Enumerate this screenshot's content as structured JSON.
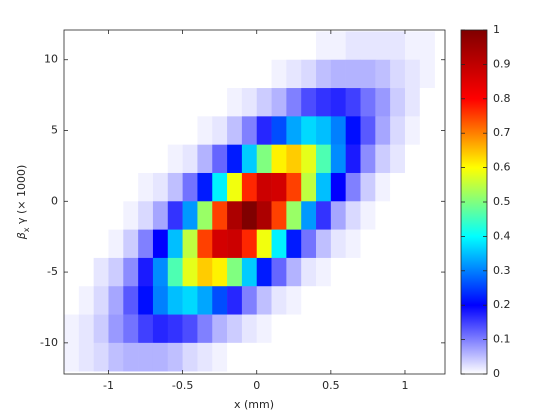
{
  "chart_data": {
    "type": "heatmap",
    "xlabel": "x (mm)",
    "ylabel": {
      "symbol": "β",
      "sub": "x",
      "rest": " γ (× 1000)"
    },
    "x": [
      -1.25,
      -1.15,
      -1.05,
      -0.95,
      -0.85,
      -0.75,
      -0.65,
      -0.55,
      -0.45,
      -0.35,
      -0.25,
      -0.15,
      -0.05,
      0.05,
      0.15,
      0.25,
      0.35,
      0.45,
      0.55,
      0.65,
      0.75,
      0.85,
      0.95,
      1.05,
      1.15
    ],
    "y": [
      11,
      9,
      7,
      5,
      3,
      1,
      -1,
      -3,
      -5,
      -7,
      -9,
      -11
    ],
    "z": [
      [
        0,
        0,
        0,
        0,
        0,
        0,
        0,
        0,
        0,
        0,
        0,
        0,
        0,
        0,
        0,
        0,
        0,
        0.01,
        0.01,
        0.02,
        0.02,
        0.02,
        0.02,
        0.01,
        0.01
      ],
      [
        0,
        0,
        0,
        0,
        0,
        0,
        0,
        0,
        0,
        0,
        0,
        0,
        0,
        0,
        0.01,
        0.02,
        0.03,
        0.05,
        0.06,
        0.06,
        0.06,
        0.05,
        0.03,
        0.02,
        0.01
      ],
      [
        0,
        0,
        0,
        0,
        0,
        0,
        0,
        0,
        0,
        0,
        0,
        0.01,
        0.02,
        0.04,
        0.06,
        0.1,
        0.14,
        0.16,
        0.17,
        0.15,
        0.11,
        0.08,
        0.04,
        0.02,
        0
      ],
      [
        0,
        0,
        0,
        0,
        0,
        0,
        0,
        0,
        0,
        0.01,
        0.02,
        0.05,
        0.1,
        0.17,
        0.26,
        0.33,
        0.37,
        0.35,
        0.3,
        0.21,
        0.13,
        0.07,
        0.03,
        0.01,
        0
      ],
      [
        0,
        0,
        0,
        0,
        0,
        0,
        0,
        0.01,
        0.02,
        0.06,
        0.12,
        0.22,
        0.36,
        0.5,
        0.61,
        0.64,
        0.58,
        0.46,
        0.31,
        0.18,
        0.09,
        0.04,
        0.02,
        0,
        0
      ],
      [
        0,
        0,
        0,
        0,
        0,
        0.01,
        0.02,
        0.05,
        0.11,
        0.22,
        0.39,
        0.59,
        0.77,
        0.88,
        0.87,
        0.75,
        0.55,
        0.35,
        0.2,
        0.1,
        0.04,
        0.01,
        0,
        0,
        0
      ],
      [
        0,
        0,
        0,
        0,
        0.01,
        0.03,
        0.07,
        0.16,
        0.32,
        0.52,
        0.75,
        0.93,
        1,
        0.93,
        0.75,
        0.52,
        0.32,
        0.16,
        0.07,
        0.03,
        0.01,
        0,
        0,
        0,
        0
      ],
      [
        0,
        0,
        0,
        0.01,
        0.04,
        0.1,
        0.2,
        0.35,
        0.55,
        0.75,
        0.87,
        0.88,
        0.77,
        0.59,
        0.39,
        0.22,
        0.11,
        0.05,
        0.02,
        0.01,
        0,
        0,
        0,
        0,
        0
      ],
      [
        0,
        0,
        0.02,
        0.04,
        0.09,
        0.18,
        0.31,
        0.46,
        0.58,
        0.64,
        0.61,
        0.5,
        0.36,
        0.22,
        0.12,
        0.06,
        0.02,
        0.01,
        0,
        0,
        0,
        0,
        0,
        0,
        0
      ],
      [
        0,
        0.01,
        0.03,
        0.07,
        0.13,
        0.21,
        0.3,
        0.35,
        0.37,
        0.33,
        0.26,
        0.17,
        0.1,
        0.05,
        0.02,
        0.01,
        0,
        0,
        0,
        0,
        0,
        0,
        0,
        0,
        0
      ],
      [
        0.01,
        0.02,
        0.04,
        0.08,
        0.11,
        0.15,
        0.17,
        0.16,
        0.14,
        0.1,
        0.06,
        0.04,
        0.02,
        0.01,
        0,
        0,
        0,
        0,
        0,
        0,
        0,
        0,
        0,
        0,
        0
      ],
      [
        0.01,
        0.02,
        0.03,
        0.05,
        0.06,
        0.06,
        0.06,
        0.05,
        0.03,
        0.02,
        0.01,
        0,
        0,
        0,
        0,
        0,
        0,
        0,
        0,
        0,
        0,
        0,
        0,
        0,
        0
      ]
    ],
    "xlim": [
      -1.3,
      1.27
    ],
    "ylim": [
      -12.2,
      12.1
    ],
    "xticks": [
      -1,
      -0.5,
      0,
      0.5,
      1
    ],
    "yticks": [
      -10,
      -5,
      0,
      5,
      10
    ],
    "clim": [
      0,
      1
    ],
    "cticks": [
      0,
      0.1,
      0.2,
      0.3,
      0.4,
      0.5,
      0.6,
      0.7,
      0.8,
      0.9,
      1
    ],
    "colormap": [
      "#ffffff",
      "#0000ff",
      "#00ffff",
      "#ffff00",
      "#ff0000",
      "#800000"
    ]
  }
}
